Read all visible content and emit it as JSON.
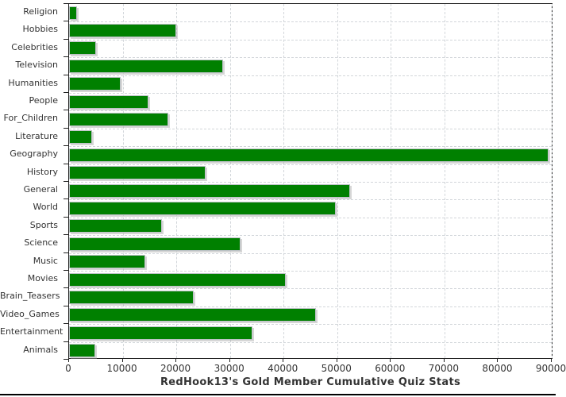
{
  "chart_data": {
    "type": "bar",
    "orientation": "horizontal",
    "title": "RedHook13's Gold Member Cumulative Quiz Stats",
    "categories": [
      "Religion",
      "Hobbies",
      "Celebrities",
      "Television",
      "Humanities",
      "People",
      "For_Children",
      "Literature",
      "Geography",
      "History",
      "General",
      "World",
      "Sports",
      "Science",
      "Music",
      "Movies",
      "Brain_Teasers",
      "Video_Games",
      "Entertainment",
      "Animals"
    ],
    "values": [
      1500,
      20000,
      5000,
      28700,
      9600,
      14800,
      18500,
      4300,
      89400,
      25400,
      52400,
      49700,
      17300,
      31900,
      14200,
      40400,
      23200,
      46000,
      34200,
      4900
    ],
    "xlabel": "",
    "ylabel": "",
    "xlim": [
      0,
      90000
    ],
    "xticks": [
      0,
      10000,
      20000,
      30000,
      40000,
      50000,
      60000,
      70000,
      80000,
      90000
    ],
    "grid": true,
    "grid_style": "dashed",
    "legend_position": "none",
    "bar_color": "#008000",
    "grid_color": "#d2d6da",
    "axis_color": "#222222",
    "label_color": "#333333",
    "background_color": "#ffffff"
  }
}
